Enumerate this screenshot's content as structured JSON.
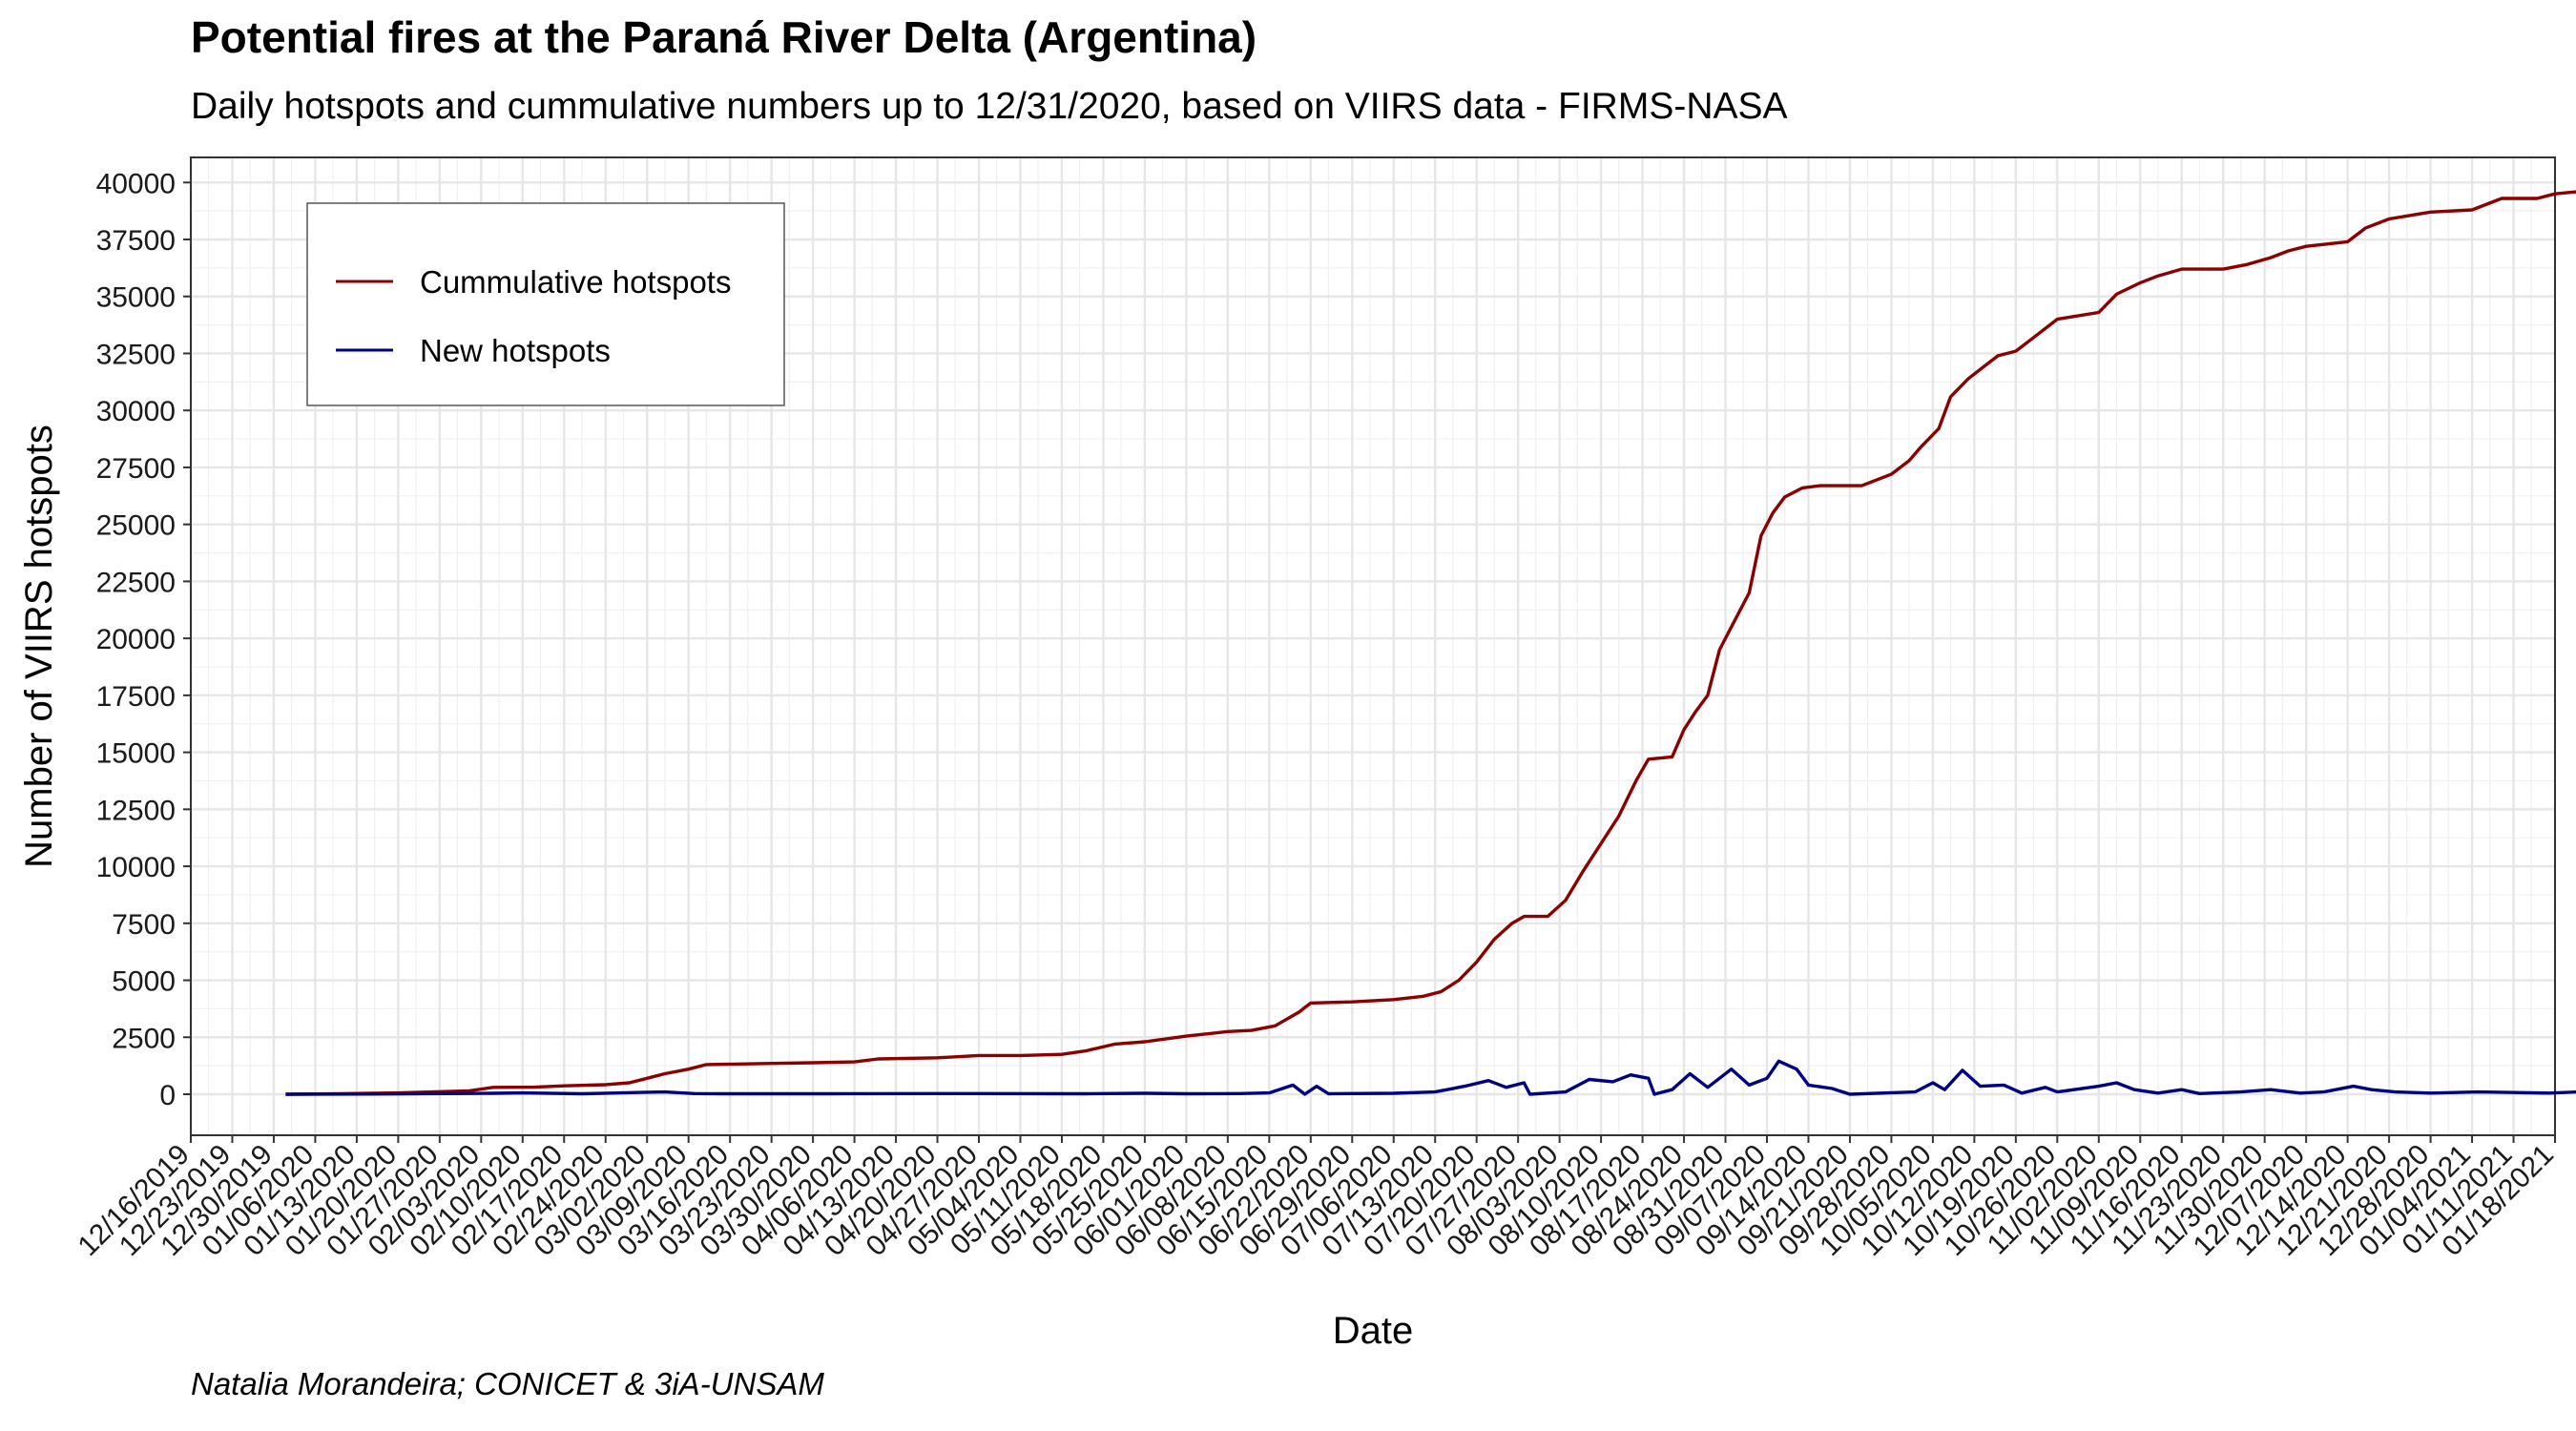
{
  "chart_data": {
    "type": "line",
    "title": "Potential fires at the Paraná River Delta (Argentina)",
    "subtitle": "Daily hotspots and cummulative numbers up to 12/31/2020, based on VIIRS data - FIRMS-NASA",
    "caption": "Natalia Morandeira; CONICET & 3iA-UNSAM",
    "xlabel": "Date",
    "ylabel": "Number of VIIRS hotspots",
    "x_type": "date",
    "xlim": [
      "2019-12-16",
      "2021-01-18"
    ],
    "ylim": [
      -1800,
      41100
    ],
    "grid": true,
    "legend_position": "top-left",
    "x_ticks": [
      "12/16/2019",
      "12/23/2019",
      "12/30/2019",
      "01/06/2020",
      "01/13/2020",
      "01/20/2020",
      "01/27/2020",
      "02/03/2020",
      "02/10/2020",
      "02/17/2020",
      "02/24/2020",
      "03/02/2020",
      "03/09/2020",
      "03/16/2020",
      "03/23/2020",
      "03/30/2020",
      "04/06/2020",
      "04/13/2020",
      "04/20/2020",
      "04/27/2020",
      "05/04/2020",
      "05/11/2020",
      "05/18/2020",
      "05/25/2020",
      "06/01/2020",
      "06/08/2020",
      "06/15/2020",
      "06/22/2020",
      "06/29/2020",
      "07/06/2020",
      "07/13/2020",
      "07/20/2020",
      "07/27/2020",
      "08/03/2020",
      "08/10/2020",
      "08/17/2020",
      "08/24/2020",
      "08/31/2020",
      "09/07/2020",
      "09/14/2020",
      "09/21/2020",
      "09/28/2020",
      "10/05/2020",
      "10/12/2020",
      "10/19/2020",
      "10/26/2020",
      "11/02/2020",
      "11/09/2020",
      "11/16/2020",
      "11/23/2020",
      "11/30/2020",
      "12/07/2020",
      "12/14/2020",
      "12/21/2020",
      "12/28/2020",
      "01/04/2021",
      "01/11/2021",
      "01/18/2021"
    ],
    "y_ticks": [
      0,
      2500,
      5000,
      7500,
      10000,
      12500,
      15000,
      17500,
      20000,
      22500,
      25000,
      27500,
      30000,
      32500,
      35000,
      37500,
      40000
    ],
    "series": [
      {
        "name": "Cummulative hotspots",
        "color": "#8b0000",
        "points": [
          [
            "2020-01-01",
            0
          ],
          [
            "2020-01-10",
            20
          ],
          [
            "2020-01-20",
            60
          ],
          [
            "2020-02-01",
            150
          ],
          [
            "2020-02-05",
            300
          ],
          [
            "2020-02-12",
            310
          ],
          [
            "2020-02-17",
            370
          ],
          [
            "2020-02-24",
            420
          ],
          [
            "2020-02-28",
            500
          ],
          [
            "2020-03-02",
            700
          ],
          [
            "2020-03-05",
            900
          ],
          [
            "2020-03-09",
            1100
          ],
          [
            "2020-03-12",
            1300
          ],
          [
            "2020-03-23",
            1350
          ],
          [
            "2020-03-30",
            1380
          ],
          [
            "2020-04-06",
            1420
          ],
          [
            "2020-04-10",
            1550
          ],
          [
            "2020-04-20",
            1600
          ],
          [
            "2020-04-27",
            1700
          ],
          [
            "2020-05-04",
            1700
          ],
          [
            "2020-05-11",
            1750
          ],
          [
            "2020-05-15",
            1900
          ],
          [
            "2020-05-20",
            2200
          ],
          [
            "2020-05-25",
            2300
          ],
          [
            "2020-06-01",
            2550
          ],
          [
            "2020-06-08",
            2750
          ],
          [
            "2020-06-12",
            2800
          ],
          [
            "2020-06-16",
            3000
          ],
          [
            "2020-06-20",
            3600
          ],
          [
            "2020-06-22",
            4000
          ],
          [
            "2020-06-29",
            4050
          ],
          [
            "2020-07-06",
            4150
          ],
          [
            "2020-07-11",
            4300
          ],
          [
            "2020-07-14",
            4500
          ],
          [
            "2020-07-17",
            5000
          ],
          [
            "2020-07-20",
            5800
          ],
          [
            "2020-07-23",
            6800
          ],
          [
            "2020-07-26",
            7500
          ],
          [
            "2020-07-28",
            7800
          ],
          [
            "2020-08-01",
            7800
          ],
          [
            "2020-08-04",
            8500
          ],
          [
            "2020-08-07",
            9800
          ],
          [
            "2020-08-10",
            11000
          ],
          [
            "2020-08-13",
            12200
          ],
          [
            "2020-08-16",
            13800
          ],
          [
            "2020-08-18",
            14700
          ],
          [
            "2020-08-22",
            14800
          ],
          [
            "2020-08-24",
            16000
          ],
          [
            "2020-08-26",
            16800
          ],
          [
            "2020-08-28",
            17500
          ],
          [
            "2020-08-30",
            19500
          ],
          [
            "2020-09-01",
            20500
          ],
          [
            "2020-09-04",
            22000
          ],
          [
            "2020-09-06",
            24500
          ],
          [
            "2020-09-08",
            25500
          ],
          [
            "2020-09-10",
            26200
          ],
          [
            "2020-09-13",
            26600
          ],
          [
            "2020-09-16",
            26700
          ],
          [
            "2020-09-23",
            26700
          ],
          [
            "2020-09-28",
            27200
          ],
          [
            "2020-10-01",
            27800
          ],
          [
            "2020-10-03",
            28400
          ],
          [
            "2020-10-06",
            29200
          ],
          [
            "2020-10-08",
            30600
          ],
          [
            "2020-10-11",
            31400
          ],
          [
            "2020-10-14",
            32000
          ],
          [
            "2020-10-16",
            32400
          ],
          [
            "2020-10-19",
            32600
          ],
          [
            "2020-10-22",
            33200
          ],
          [
            "2020-10-26",
            34000
          ],
          [
            "2020-11-02",
            34300
          ],
          [
            "2020-11-05",
            35100
          ],
          [
            "2020-11-09",
            35600
          ],
          [
            "2020-11-12",
            35900
          ],
          [
            "2020-11-16",
            36200
          ],
          [
            "2020-11-23",
            36200
          ],
          [
            "2020-11-27",
            36400
          ],
          [
            "2020-12-01",
            36700
          ],
          [
            "2020-12-04",
            37000
          ],
          [
            "2020-12-07",
            37200
          ],
          [
            "2020-12-14",
            37400
          ],
          [
            "2020-12-17",
            38000
          ],
          [
            "2020-12-21",
            38400
          ],
          [
            "2020-12-28",
            38700
          ],
          [
            "2021-01-04",
            38800
          ],
          [
            "2021-01-09",
            39300
          ],
          [
            "2021-01-15",
            39300
          ],
          [
            "2021-01-18",
            39500
          ],
          [
            "2021-01-22",
            39600
          ],
          [
            "2021-01-26",
            39700
          ],
          [
            "2021-01-31",
            39800
          ]
        ]
      },
      {
        "name": "New hotspots",
        "color": "#000080",
        "points": [
          [
            "2020-01-01",
            0
          ],
          [
            "2020-01-15",
            10
          ],
          [
            "2020-02-05",
            40
          ],
          [
            "2020-02-10",
            60
          ],
          [
            "2020-02-20",
            20
          ],
          [
            "2020-03-01",
            80
          ],
          [
            "2020-03-05",
            100
          ],
          [
            "2020-03-10",
            30
          ],
          [
            "2020-03-15",
            20
          ],
          [
            "2020-04-01",
            20
          ],
          [
            "2020-04-20",
            30
          ],
          [
            "2020-05-15",
            20
          ],
          [
            "2020-05-25",
            40
          ],
          [
            "2020-06-01",
            20
          ],
          [
            "2020-06-10",
            30
          ],
          [
            "2020-06-15",
            60
          ],
          [
            "2020-06-19",
            400
          ],
          [
            "2020-06-21",
            0
          ],
          [
            "2020-06-23",
            350
          ],
          [
            "2020-06-25",
            20
          ],
          [
            "2020-07-06",
            40
          ],
          [
            "2020-07-13",
            100
          ],
          [
            "2020-07-18",
            350
          ],
          [
            "2020-07-22",
            600
          ],
          [
            "2020-07-25",
            300
          ],
          [
            "2020-07-28",
            500
          ],
          [
            "2020-07-29",
            0
          ],
          [
            "2020-08-04",
            100
          ],
          [
            "2020-08-08",
            650
          ],
          [
            "2020-08-12",
            550
          ],
          [
            "2020-08-15",
            850
          ],
          [
            "2020-08-18",
            700
          ],
          [
            "2020-08-19",
            0
          ],
          [
            "2020-08-22",
            200
          ],
          [
            "2020-08-25",
            900
          ],
          [
            "2020-08-28",
            300
          ],
          [
            "2020-09-01",
            1100
          ],
          [
            "2020-09-04",
            400
          ],
          [
            "2020-09-07",
            700
          ],
          [
            "2020-09-09",
            1450
          ],
          [
            "2020-09-12",
            1100
          ],
          [
            "2020-09-14",
            400
          ],
          [
            "2020-09-18",
            250
          ],
          [
            "2020-09-21",
            0
          ],
          [
            "2020-10-02",
            100
          ],
          [
            "2020-10-05",
            500
          ],
          [
            "2020-10-07",
            200
          ],
          [
            "2020-10-10",
            1050
          ],
          [
            "2020-10-13",
            350
          ],
          [
            "2020-10-17",
            400
          ],
          [
            "2020-10-20",
            50
          ],
          [
            "2020-10-24",
            300
          ],
          [
            "2020-10-26",
            100
          ],
          [
            "2020-11-02",
            350
          ],
          [
            "2020-11-05",
            500
          ],
          [
            "2020-11-08",
            200
          ],
          [
            "2020-11-12",
            50
          ],
          [
            "2020-11-16",
            200
          ],
          [
            "2020-11-19",
            30
          ],
          [
            "2020-11-26",
            100
          ],
          [
            "2020-12-01",
            200
          ],
          [
            "2020-12-06",
            50
          ],
          [
            "2020-12-10",
            100
          ],
          [
            "2020-12-15",
            350
          ],
          [
            "2020-12-18",
            200
          ],
          [
            "2020-12-22",
            100
          ],
          [
            "2020-12-28",
            50
          ],
          [
            "2021-01-05",
            100
          ],
          [
            "2021-01-10",
            80
          ],
          [
            "2021-01-17",
            50
          ],
          [
            "2021-01-22",
            100
          ],
          [
            "2021-01-31",
            50
          ]
        ]
      }
    ]
  }
}
